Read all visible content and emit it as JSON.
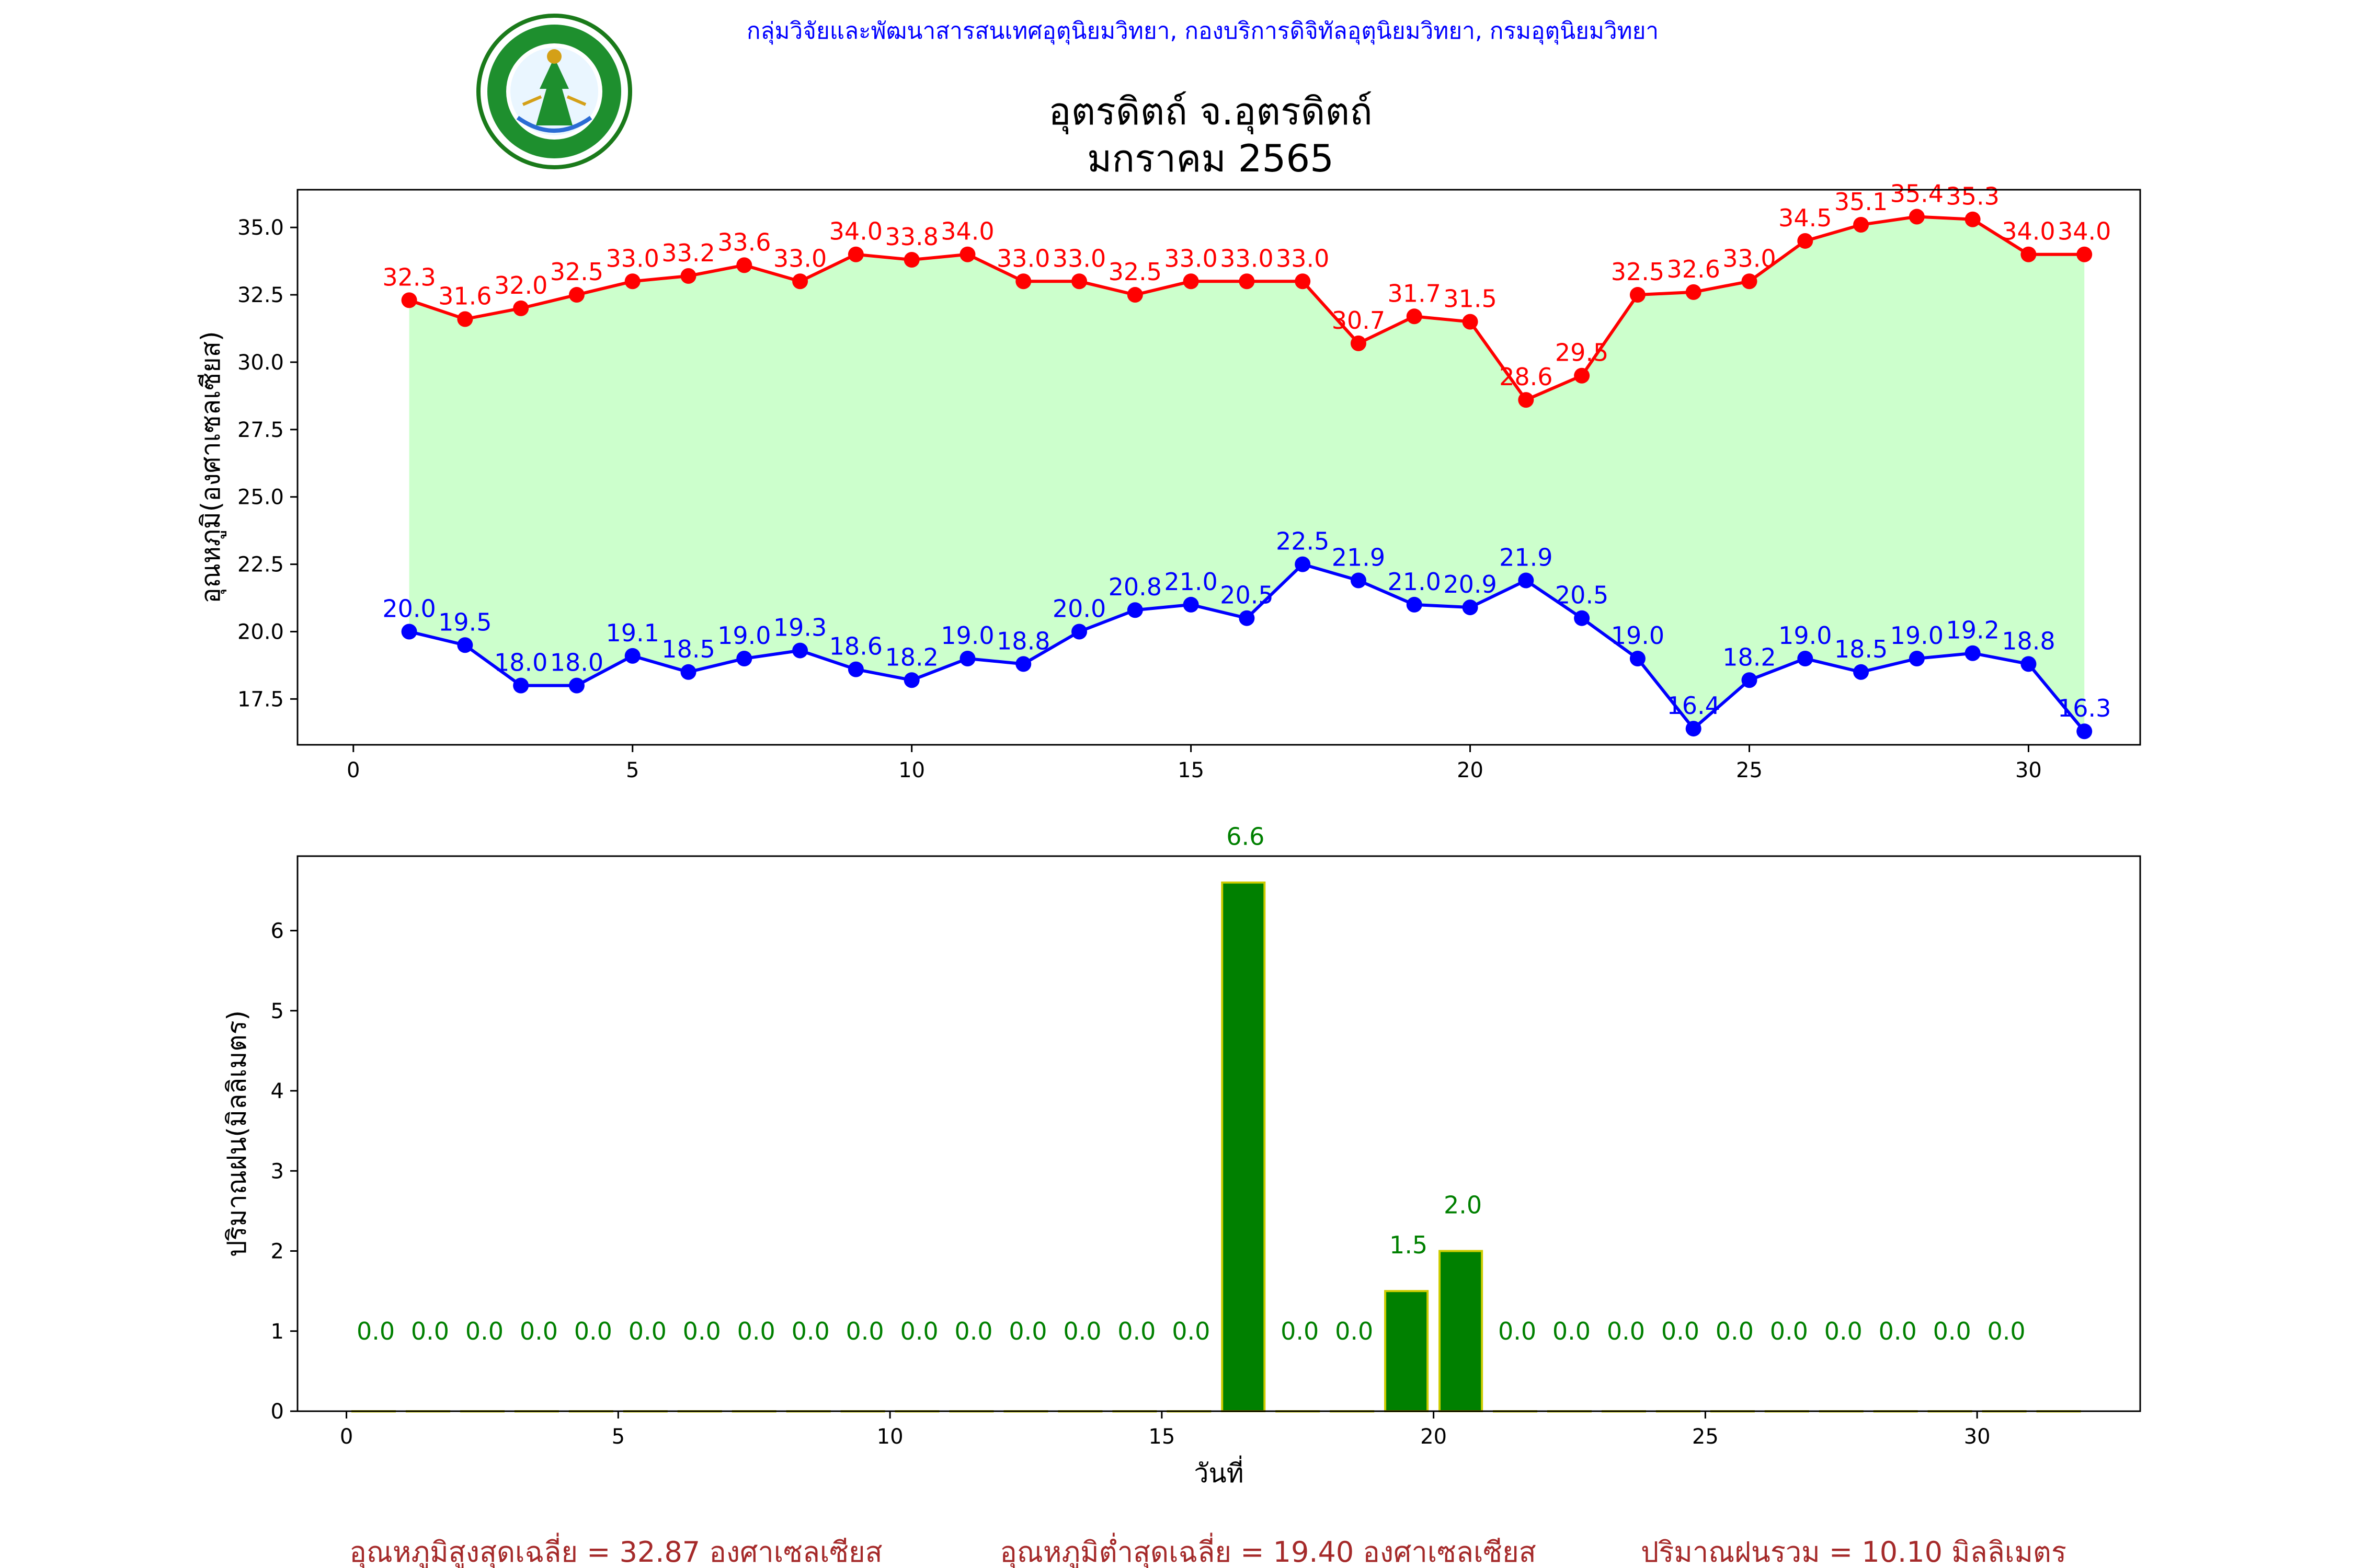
{
  "header": {
    "org_line": "กลุ่มวิจัยและพัฒนาสารสนเทศอุตุนิยมวิทยา, กองบริการดิจิทัลอุตุนิยมวิทยา, กรมอุตุนิยมวิทยา",
    "station": "อุตรดิตถ์ จ.อุตรดิตถ์",
    "period": "มกราคม 2565",
    "logo_text": "กรมอุตุนิยมวิทยา METEOROLOGICAL DEPARTMENT"
  },
  "colors": {
    "max": "#ff0000",
    "min": "#0000ff",
    "band": "#ccffcc",
    "rain": "#008000",
    "rain_edge": "#cccc00",
    "summary": "#a52a2a",
    "org": "#0000ff"
  },
  "chart_data": [
    {
      "type": "line",
      "ylabel": "อุณหภูมิ(องศาเซลเซียส)",
      "xlabel": "",
      "xlim": [
        -1,
        32
      ],
      "ylim": [
        15.8,
        36.4
      ],
      "xticks": [
        0,
        5,
        10,
        15,
        20,
        25,
        30
      ],
      "yticks": [
        17.5,
        20.0,
        22.5,
        25.0,
        27.5,
        30.0,
        32.5,
        35.0
      ],
      "x": [
        1,
        2,
        3,
        4,
        5,
        6,
        7,
        8,
        9,
        10,
        11,
        12,
        13,
        14,
        15,
        16,
        17,
        18,
        19,
        20,
        21,
        22,
        23,
        24,
        25,
        26,
        27,
        28,
        29,
        30,
        31
      ],
      "series": [
        {
          "values": [
            32.3,
            31.6,
            32.0,
            32.5,
            33.0,
            33.2,
            33.6,
            33.0,
            34.0,
            33.8,
            34.0,
            33.0,
            33.0,
            32.5,
            33.0,
            33.0,
            33.0,
            30.7,
            31.7,
            31.5,
            28.6,
            29.5,
            32.5,
            32.6,
            33.0,
            34.5,
            35.1,
            35.4,
            35.3,
            34.0,
            34.0
          ]
        },
        {
          "values": [
            20.0,
            19.5,
            18.0,
            18.0,
            19.1,
            18.5,
            19.0,
            19.3,
            18.6,
            18.2,
            19.0,
            18.8,
            20.0,
            20.8,
            21.0,
            20.5,
            22.5,
            21.9,
            21.0,
            20.9,
            21.9,
            20.5,
            19.0,
            16.4,
            18.2,
            19.0,
            18.5,
            19.0,
            19.2,
            18.8,
            16.3
          ]
        }
      ],
      "grid": false,
      "legend": "none"
    },
    {
      "type": "bar",
      "xlabel": "วันที่",
      "ylabel": "ปริมาณฝน(มิลลิเมตร)",
      "xlim": [
        -0.9,
        33.0
      ],
      "ylim": [
        0,
        6.93
      ],
      "xticks": [
        0,
        5,
        10,
        15,
        20,
        25,
        30
      ],
      "yticks": [
        0,
        1,
        2,
        3,
        4,
        5,
        6
      ],
      "x": [
        1,
        2,
        3,
        4,
        5,
        6,
        7,
        8,
        9,
        10,
        11,
        12,
        13,
        14,
        15,
        16,
        17,
        18,
        19,
        20,
        21,
        22,
        23,
        24,
        25,
        26,
        27,
        28,
        29,
        30,
        31,
        32
      ],
      "values": [
        0.0,
        0.0,
        0.0,
        0.0,
        0.0,
        0.0,
        0.0,
        0.0,
        0.0,
        0.0,
        0.0,
        0.0,
        0.0,
        0.0,
        0.0,
        0.0,
        6.6,
        0.0,
        0.0,
        1.5,
        2.0,
        0.0,
        0.0,
        0.0,
        0.0,
        0.0,
        0.0,
        0.0,
        0.0,
        0.0,
        0.0,
        0.0
      ],
      "labels": [
        "0.0",
        "0.0",
        "0.0",
        "0.0",
        "0.0",
        "0.0",
        "0.0",
        "0.0",
        "0.0",
        "0.0",
        "0.0",
        "0.0",
        "0.0",
        "0.0",
        "0.0",
        "0.0",
        "6.6",
        "0.0",
        "0.0",
        "1.5",
        "2.0",
        "0.0",
        "0.0",
        "0.0",
        "0.0",
        "0.0",
        "0.0",
        "0.0",
        "0.0",
        "0.0",
        "0.0"
      ],
      "grid": false,
      "legend": "none"
    }
  ],
  "summary": {
    "avg_max": "อุณหภูมิสูงสุดเฉลี่ย = 32.87 องศาเซลเซียส",
    "avg_min": "อุณหภูมิต่ำสุดเฉลี่ย = 19.40 องศาเซลเซียส",
    "total_rain": "ปริมาณฝนรวม = 10.10 มิลลิเมตร"
  }
}
